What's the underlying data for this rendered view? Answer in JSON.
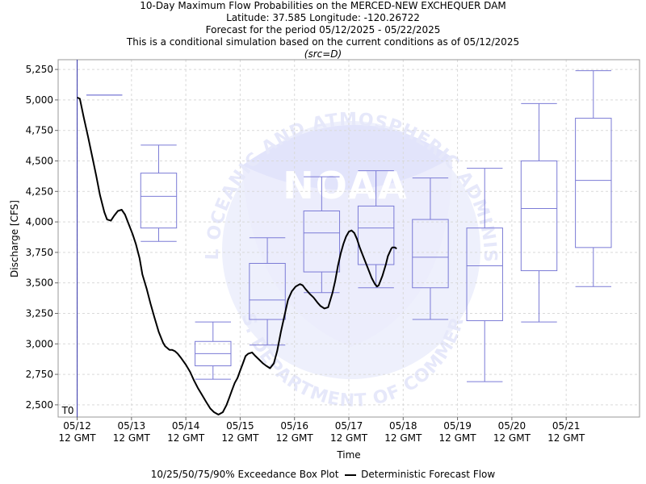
{
  "titles": {
    "line1": "10-Day Maximum Flow Probabilities on the MERCED-NEW EXCHEQUER DAM",
    "line2": "Latitude: 37.585 Longitude: -120.26722",
    "line3": "Forecast for the period 05/12/2025 - 05/22/2025",
    "line4": "This is a conditional simulation based on the current conditions as of 05/12/2025",
    "line5": "(src=D)"
  },
  "watermark": {
    "logo_text": "NOAA",
    "ring_text": "NATIONAL OCEANIC AND ATMOSPHERIC ADMINISTRATION",
    "bottom_text": "U.S. DEPARTMENT OF COMMERCE"
  },
  "legend": {
    "box_label": "10/25/50/75/90% Exceedance Box Plot",
    "line_label": "Deterministic Forecast Flow"
  },
  "colors": {
    "box": "#7b7bd6",
    "line": "#000000",
    "t0_line": "#3333aa",
    "grid": "#d9d9d9"
  },
  "chart_data": {
    "type": "box",
    "xlabel": "Time",
    "ylabel": "Discharge [CFS]",
    "ylim": [
      2400,
      5330
    ],
    "yticks": [
      "2,500",
      "2,750",
      "3,000",
      "3,250",
      "3,500",
      "3,750",
      "4,000",
      "4,250",
      "4,500",
      "4,750",
      "5,000",
      "5,250"
    ],
    "ytick_values": [
      2500,
      2750,
      3000,
      3250,
      3500,
      3750,
      4000,
      4250,
      4500,
      4750,
      5000,
      5250
    ],
    "xlim": [
      -0.35,
      10.35
    ],
    "x_tick_positions": [
      0,
      1,
      2,
      3,
      4,
      5,
      6,
      7,
      8,
      9
    ],
    "x_tick_labels_line1": [
      "05/12",
      "05/13",
      "05/14",
      "05/15",
      "05/16",
      "05/17",
      "05/18",
      "05/19",
      "05/20",
      "05/21"
    ],
    "x_tick_labels_line2": [
      "12 GMT",
      "12 GMT",
      "12 GMT",
      "12 GMT",
      "12 GMT",
      "12 GMT",
      "12 GMT",
      "12 GMT",
      "12 GMT",
      "12 GMT"
    ],
    "t0_label": "T0",
    "t0_x": 0,
    "boxes": [
      {
        "x": 0.5,
        "p10": 5040,
        "p25": 5040,
        "p50": 5040,
        "p75": 5040,
        "p90": 5040
      },
      {
        "x": 1.5,
        "p10": 3840,
        "p25": 3950,
        "p50": 4210,
        "p75": 4400,
        "p90": 4630
      },
      {
        "x": 2.5,
        "p10": 2710,
        "p25": 2820,
        "p50": 2920,
        "p75": 3020,
        "p90": 3180
      },
      {
        "x": 3.5,
        "p10": 2990,
        "p25": 3200,
        "p50": 3360,
        "p75": 3660,
        "p90": 3870
      },
      {
        "x": 4.5,
        "p10": 3420,
        "p25": 3590,
        "p50": 3910,
        "p75": 4090,
        "p90": 4370
      },
      {
        "x": 5.5,
        "p10": 3460,
        "p25": 3650,
        "p50": 3950,
        "p75": 4130,
        "p90": 4420
      },
      {
        "x": 6.5,
        "p10": 3200,
        "p25": 3460,
        "p50": 3710,
        "p75": 4020,
        "p90": 4360
      },
      {
        "x": 7.5,
        "p10": 2690,
        "p25": 3190,
        "p50": 3640,
        "p75": 3950,
        "p90": 4440
      },
      {
        "x": 8.5,
        "p10": 3180,
        "p25": 3600,
        "p50": 4110,
        "p75": 4500,
        "p90": 4970
      },
      {
        "x": 9.5,
        "p10": 3470,
        "p25": 3790,
        "p50": 4340,
        "p75": 4850,
        "p90": 5240
      }
    ],
    "series": [
      {
        "name": "Deterministic Forecast Flow",
        "x": [
          0.0,
          0.05,
          0.12,
          0.2,
          0.28,
          0.35,
          0.42,
          0.5,
          0.55,
          0.62,
          0.68,
          0.75,
          0.82,
          0.88,
          0.95,
          1.02,
          1.08,
          1.15,
          1.2,
          1.28,
          1.35,
          1.42,
          1.5,
          1.58,
          1.62,
          1.7,
          1.75,
          1.8,
          1.85,
          1.92,
          2.0,
          2.08,
          2.15,
          2.22,
          2.3,
          2.38,
          2.45,
          2.52,
          2.6,
          2.68,
          2.75,
          2.8,
          2.85,
          2.9,
          2.95,
          3.0,
          3.05,
          3.1,
          3.15,
          3.22,
          3.28,
          3.35,
          3.42,
          3.48,
          3.55,
          3.62,
          3.68,
          3.75,
          3.82,
          3.88,
          3.95,
          4.02,
          4.1,
          4.15,
          4.2,
          4.28,
          4.35,
          4.42,
          4.48,
          4.55,
          4.62,
          4.7,
          4.75,
          4.8,
          4.85,
          4.9,
          4.95,
          5.0,
          5.05,
          5.1,
          5.15,
          5.2,
          5.28,
          5.35,
          5.42,
          5.48,
          5.52,
          5.55,
          5.62,
          5.68,
          5.72,
          5.78,
          5.8,
          5.85,
          5.88
        ],
        "y": [
          5020,
          5010,
          4860,
          4700,
          4530,
          4380,
          4220,
          4080,
          4020,
          4010,
          4050,
          4090,
          4100,
          4060,
          3980,
          3900,
          3820,
          3700,
          3570,
          3450,
          3330,
          3220,
          3100,
          3010,
          2980,
          2950,
          2950,
          2940,
          2920,
          2880,
          2830,
          2770,
          2700,
          2640,
          2580,
          2520,
          2470,
          2440,
          2420,
          2440,
          2500,
          2560,
          2620,
          2680,
          2720,
          2780,
          2840,
          2900,
          2920,
          2930,
          2900,
          2870,
          2840,
          2820,
          2800,
          2840,
          2940,
          3100,
          3240,
          3360,
          3430,
          3470,
          3490,
          3480,
          3450,
          3410,
          3380,
          3340,
          3310,
          3290,
          3300,
          3420,
          3520,
          3640,
          3740,
          3820,
          3880,
          3920,
          3930,
          3910,
          3860,
          3790,
          3700,
          3620,
          3540,
          3490,
          3470,
          3480,
          3560,
          3650,
          3720,
          3780,
          3790,
          3790,
          3780
        ]
      }
    ],
    "grid": true,
    "legend_position": "bottom"
  }
}
